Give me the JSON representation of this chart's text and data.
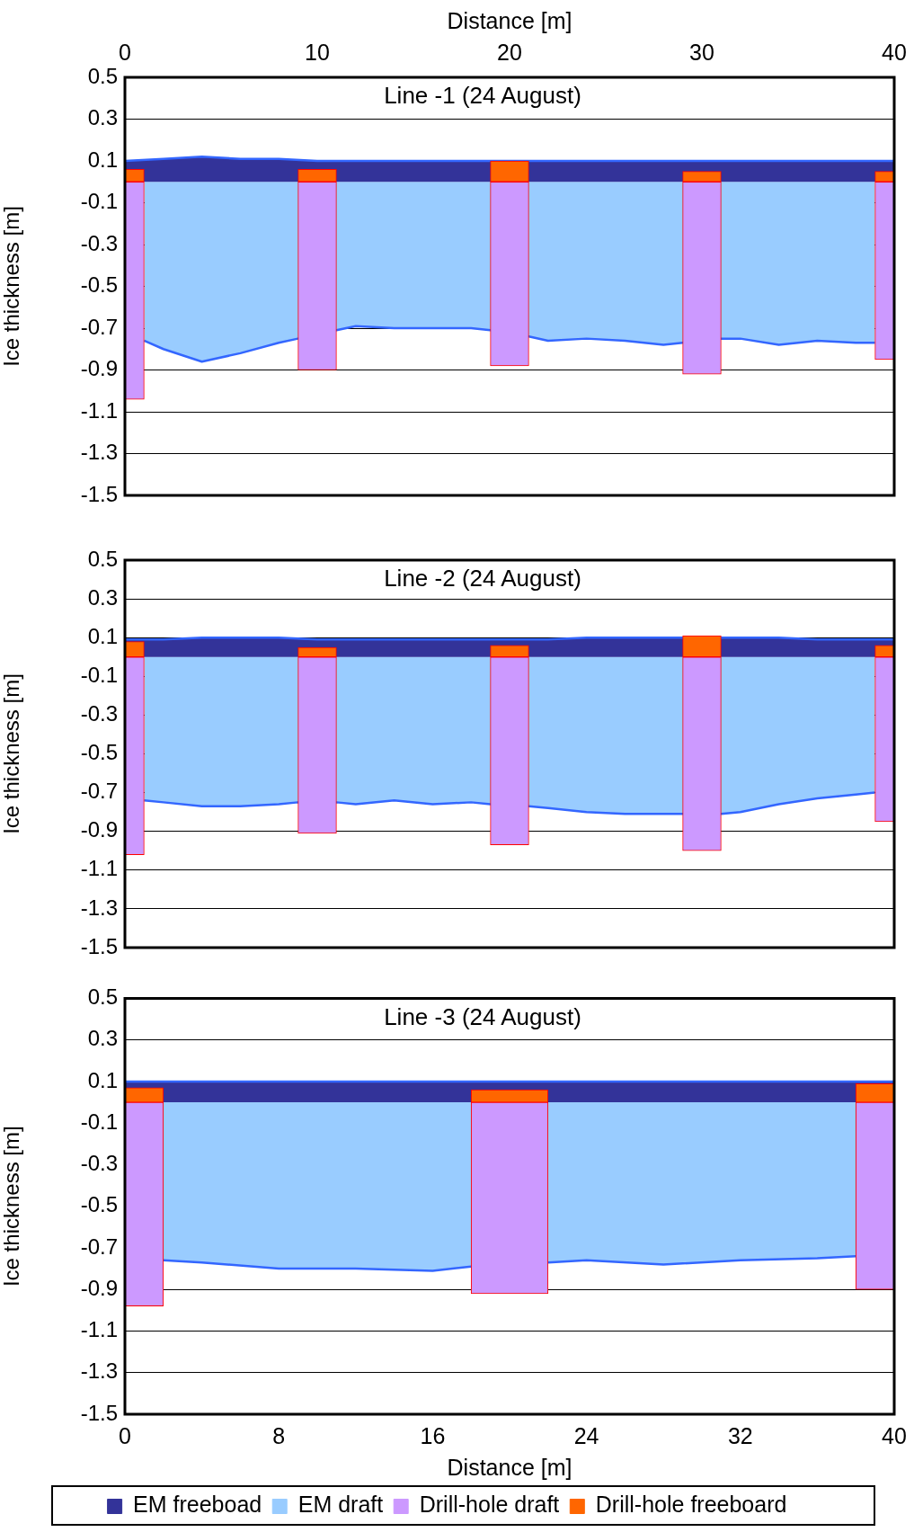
{
  "chart_data": [
    {
      "type": "area",
      "title": "Line -1 (24 August)",
      "xlabel": "Distance [m]",
      "ylabel": "Ice thickness [m]",
      "xlim": [
        0,
        40
      ],
      "xticks": [
        0,
        10,
        20,
        30,
        40
      ],
      "ylim": [
        -1.5,
        0.5
      ],
      "yticks": [
        -1.5,
        -1.3,
        -1.1,
        -0.9,
        -0.7,
        -0.5,
        -0.3,
        -0.1,
        0.1,
        0.3,
        0.5
      ],
      "grid": "y",
      "legend": false,
      "stacked": true,
      "series": [
        {
          "color": "#333399",
          "x": [
            0,
            2,
            4,
            6,
            8,
            10,
            12,
            14,
            16,
            18,
            19,
            21,
            22,
            24,
            26,
            28,
            30,
            32,
            34,
            36,
            38,
            40
          ],
          "values": [
            0.1,
            0.11,
            0.12,
            0.11,
            0.11,
            0.1,
            0.1,
            0.1,
            0.1,
            0.1,
            0.1,
            0.1,
            0.1,
            0.1,
            0.1,
            0.1,
            0.1,
            0.1,
            0.1,
            0.1,
            0.1,
            0.1
          ]
        },
        {
          "color": "#99ccff",
          "x": [
            1,
            2,
            4,
            6,
            8,
            9,
            11,
            12,
            14,
            16,
            18,
            19,
            21,
            22,
            24,
            26,
            28,
            29,
            31,
            32,
            34,
            36,
            38,
            39
          ],
          "values": [
            -0.76,
            -0.8,
            -0.86,
            -0.82,
            -0.77,
            -0.75,
            -0.71,
            -0.69,
            -0.7,
            -0.7,
            -0.7,
            -0.71,
            -0.74,
            -0.76,
            -0.75,
            -0.76,
            -0.78,
            -0.77,
            -0.75,
            -0.75,
            -0.78,
            -0.76,
            -0.77,
            -0.77
          ]
        },
        {
          "type": "bar",
          "color": "#cc99ff",
          "x": [
            0,
            10,
            20,
            30,
            40
          ],
          "values": [
            -1.04,
            -0.9,
            -0.88,
            -0.92,
            -0.85
          ]
        },
        {
          "type": "bar",
          "color": "#ff6600",
          "x": [
            0,
            10,
            20,
            30,
            40
          ],
          "values": [
            0.06,
            0.06,
            0.1,
            0.05,
            0.05
          ]
        }
      ]
    },
    {
      "type": "area",
      "title": "Line -2 (24 August)",
      "ylabel": "Ice thickness [m]",
      "xlim": [
        0,
        40
      ],
      "ylim": [
        -1.5,
        0.5
      ],
      "yticks": [
        -1.5,
        -1.3,
        -1.1,
        -0.9,
        -0.7,
        -0.5,
        -0.3,
        -0.1,
        0.1,
        0.3,
        0.5
      ],
      "tick_labels": "y",
      "grid": "y",
      "legend": false,
      "stacked": true,
      "series": [
        {
          "color": "#333399",
          "x": [
            0,
            2,
            4,
            6,
            8,
            10,
            12,
            14,
            16,
            18,
            20,
            22,
            24,
            26,
            28,
            29,
            31,
            32,
            34,
            36,
            38,
            40
          ],
          "values": [
            0.09,
            0.09,
            0.1,
            0.1,
            0.1,
            0.09,
            0.09,
            0.09,
            0.09,
            0.09,
            0.09,
            0.09,
            0.1,
            0.1,
            0.1,
            0.1,
            0.1,
            0.1,
            0.1,
            0.09,
            0.09,
            0.09
          ]
        },
        {
          "color": "#99ccff",
          "x": [
            1,
            2,
            4,
            6,
            8,
            9,
            11,
            12,
            14,
            16,
            18,
            19,
            21,
            22,
            24,
            26,
            28,
            29,
            31,
            32,
            34,
            36,
            38,
            39
          ],
          "values": [
            -0.74,
            -0.75,
            -0.77,
            -0.77,
            -0.76,
            -0.75,
            -0.75,
            -0.76,
            -0.74,
            -0.76,
            -0.75,
            -0.76,
            -0.77,
            -0.78,
            -0.8,
            -0.81,
            -0.81,
            -0.81,
            -0.81,
            -0.8,
            -0.76,
            -0.73,
            -0.71,
            -0.7
          ]
        },
        {
          "type": "bar",
          "color": "#cc99ff",
          "x": [
            0,
            10,
            20,
            30,
            40
          ],
          "values": [
            -1.02,
            -0.91,
            -0.97,
            -1.0,
            -0.85
          ]
        },
        {
          "type": "bar",
          "color": "#ff6600",
          "x": [
            0,
            10,
            20,
            30,
            40
          ],
          "values": [
            0.08,
            0.05,
            0.06,
            0.11,
            0.06
          ]
        }
      ]
    },
    {
      "type": "area",
      "title": "Line -3 (24 August)",
      "xlabel": "Distance [m]",
      "ylabel": "Ice thickness [m]",
      "xlim": [
        0,
        40
      ],
      "xticks": [
        0,
        8,
        16,
        24,
        32,
        40
      ],
      "ylim": [
        -1.5,
        0.5
      ],
      "yticks": [
        -1.5,
        -1.3,
        -1.1,
        -0.9,
        -0.7,
        -0.5,
        -0.3,
        -0.1,
        0.1,
        0.3,
        0.5
      ],
      "grid": "y",
      "legend": "bottom",
      "stacked": true,
      "series": [
        {
          "name": "EM freeboad",
          "color": "#333399",
          "x": [
            0,
            4,
            8,
            12,
            16,
            20,
            24,
            28,
            32,
            36,
            40
          ],
          "values": [
            0.1,
            0.1,
            0.1,
            0.1,
            0.1,
            0.1,
            0.1,
            0.1,
            0.1,
            0.1,
            0.1
          ]
        },
        {
          "name": "EM draft",
          "color": "#99ccff",
          "x": [
            2,
            4,
            8,
            12,
            16,
            18,
            22,
            24,
            28,
            32,
            36,
            38
          ],
          "values": [
            -0.76,
            -0.77,
            -0.8,
            -0.8,
            -0.81,
            -0.79,
            -0.77,
            -0.76,
            -0.78,
            -0.76,
            -0.75,
            -0.74
          ]
        },
        {
          "name": "Drill-hole draft",
          "type": "bar",
          "color": "#cc99ff",
          "x": [
            0,
            20,
            40
          ],
          "values": [
            -0.98,
            -0.92,
            -0.9
          ]
        },
        {
          "name": "Drill-hole freeboard",
          "type": "bar",
          "color": "#ff6600",
          "x": [
            0,
            20,
            40
          ],
          "values": [
            0.07,
            0.06,
            0.09
          ]
        }
      ]
    }
  ]
}
